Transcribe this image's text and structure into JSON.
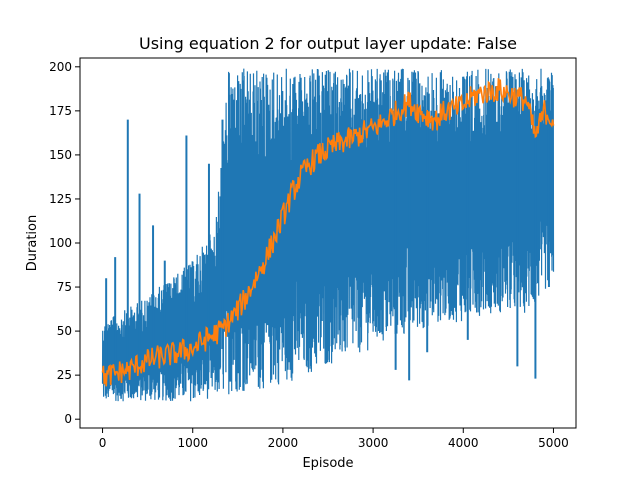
{
  "chart_data": {
    "type": "line",
    "title": "Using equation 2 for output layer update: False",
    "xlabel": "Episode",
    "ylabel": "Duration",
    "xlim": [
      -250,
      5250
    ],
    "ylim": [
      -5,
      205
    ],
    "xticks": [
      0,
      1000,
      2000,
      3000,
      4000,
      5000
    ],
    "yticks": [
      0,
      25,
      50,
      75,
      100,
      125,
      150,
      175,
      200
    ],
    "grid": false,
    "legend": "none",
    "colors": {
      "raw": "#1f77b4",
      "smoothed": "#ff7f0e"
    },
    "series": [
      {
        "role": "raw",
        "episodes": 5000,
        "band": {
          "x": [
            0,
            250,
            500,
            750,
            1000,
            1250,
            1400,
            1500,
            1750,
            2000,
            2250,
            2500,
            2750,
            3000,
            3250,
            3500,
            3750,
            4000,
            4250,
            4500,
            4750,
            5000
          ],
          "low": [
            10,
            10,
            10,
            10,
            10,
            12,
            14,
            15,
            16,
            20,
            24,
            30,
            35,
            40,
            45,
            50,
            55,
            55,
            60,
            60,
            60,
            80
          ],
          "high": [
            55,
            62,
            70,
            80,
            90,
            110,
            199,
            199,
            199,
            199,
            199,
            199,
            199,
            199,
            199,
            199,
            199,
            199,
            199,
            199,
            199,
            199
          ]
        },
        "spikes": [
          {
            "x": 40,
            "y": 80
          },
          {
            "x": 140,
            "y": 92
          },
          {
            "x": 280,
            "y": 170
          },
          {
            "x": 410,
            "y": 128
          },
          {
            "x": 560,
            "y": 110
          },
          {
            "x": 690,
            "y": 90
          },
          {
            "x": 930,
            "y": 161
          },
          {
            "x": 1180,
            "y": 145
          },
          {
            "x": 1330,
            "y": 170
          }
        ],
        "dips": [
          {
            "x": 3250,
            "y": 28
          },
          {
            "x": 3400,
            "y": 22
          },
          {
            "x": 3600,
            "y": 38
          },
          {
            "x": 4050,
            "y": 45
          },
          {
            "x": 4600,
            "y": 30
          },
          {
            "x": 4800,
            "y": 23
          },
          {
            "x": 4950,
            "y": 75
          }
        ]
      },
      {
        "role": "smoothed",
        "x": [
          0,
          100,
          200,
          300,
          400,
          500,
          600,
          700,
          800,
          900,
          1000,
          1100,
          1200,
          1300,
          1400,
          1500,
          1600,
          1700,
          1800,
          1900,
          2000,
          2100,
          2200,
          2300,
          2400,
          2500,
          2600,
          2700,
          2800,
          2900,
          3000,
          3100,
          3200,
          3300,
          3400,
          3500,
          3600,
          3700,
          3800,
          3900,
          4000,
          4100,
          4200,
          4300,
          4400,
          4500,
          4600,
          4700,
          4800,
          4900,
          5000
        ],
        "y": [
          24,
          25,
          27,
          28,
          31,
          33,
          35,
          36,
          37,
          39,
          40,
          44,
          47,
          50,
          55,
          62,
          70,
          80,
          90,
          102,
          115,
          128,
          138,
          145,
          150,
          153,
          156,
          158,
          160,
          163,
          165,
          168,
          172,
          176,
          180,
          175,
          172,
          170,
          175,
          176,
          178,
          183,
          185,
          186,
          187,
          185,
          183,
          181,
          160,
          175,
          170
        ]
      }
    ]
  }
}
